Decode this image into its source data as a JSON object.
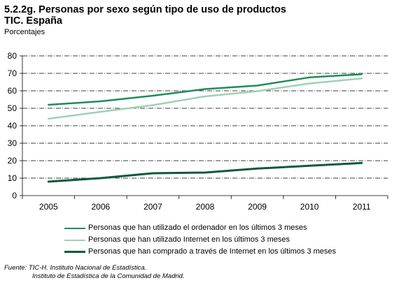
{
  "title_line1": "5.2.2g. Personas por sexo según tipo de uso de productos",
  "title_line2": "TIC. España",
  "units_label": "Porcentajes",
  "source_line1": "Fuente: TIC-H. Instituto Nacional de Estadística.",
  "source_line2": "Instituto de Estadística de la Comunidad de Madrid.",
  "chart_data": {
    "type": "line",
    "title": "5.2.2g. Personas por sexo según tipo de uso de productos TIC. España",
    "ylabel": "Porcentajes",
    "ylim": [
      0,
      80
    ],
    "yticks": [
      0,
      10,
      20,
      30,
      40,
      50,
      60,
      70,
      80
    ],
    "grid": true,
    "legend_position": "bottom",
    "categories": [
      "2005",
      "2006",
      "2007",
      "2008",
      "2009",
      "2010",
      "2011"
    ],
    "series": [
      {
        "name": "Personas que han utilizado el ordenador en los últimos 3 meses",
        "color": "#1e8c5a",
        "width": 2.5,
        "values": [
          52,
          54,
          57.2,
          61,
          63,
          67.7,
          69.5
        ]
      },
      {
        "name": "Personas que han utilizado Internet en los últimos 3 meses",
        "color": "#9fd0b4",
        "width": 2.5,
        "values": [
          44,
          48,
          51.8,
          56.8,
          59.8,
          64.2,
          67.1
        ]
      },
      {
        "name": "Personas que han comprado a través de Internet en los últimos 3 meses",
        "color": "#0d5a3b",
        "width": 3,
        "values": [
          8,
          10,
          12.8,
          13.2,
          15.5,
          17.1,
          18.7
        ]
      }
    ]
  }
}
